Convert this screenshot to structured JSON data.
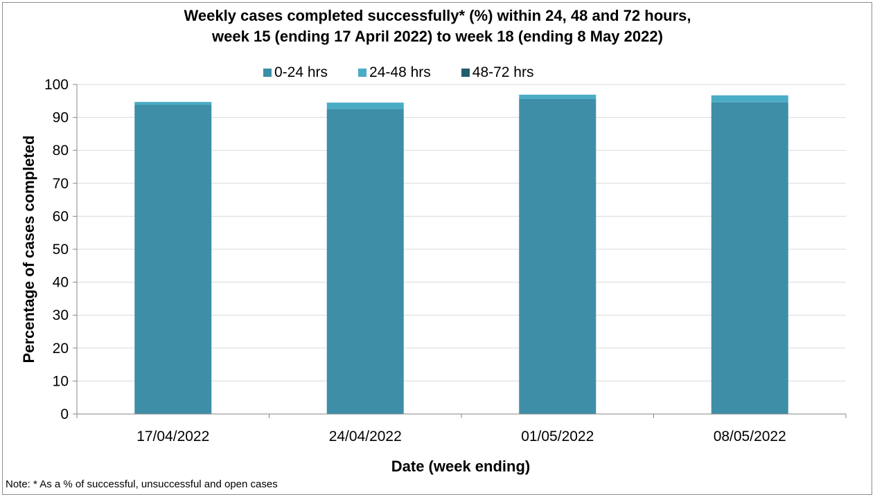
{
  "chart_data": {
    "type": "bar",
    "stacked": true,
    "title_line1": "Weekly cases completed successfully* (%) within 24, 48 and 72 hours,",
    "title_line2": "week 15 (ending 17 April 2022) to week 18 (ending 8 May 2022)",
    "xlabel": "Date (week ending)",
    "ylabel": "Percentage of cases completed",
    "ylim": [
      0,
      100
    ],
    "ytick_step": 10,
    "yticks": [
      "0",
      "10",
      "20",
      "30",
      "40",
      "50",
      "60",
      "70",
      "80",
      "90",
      "100"
    ],
    "grid": true,
    "legend_position": "top",
    "categories": [
      "17/04/2022",
      "24/04/2022",
      "01/05/2022",
      "08/05/2022"
    ],
    "series": [
      {
        "name": "0-24 hrs",
        "color": "#3d8ea6",
        "values": [
          93.8,
          92.6,
          95.6,
          94.6
        ]
      },
      {
        "name": "24-48 hrs",
        "color": "#4bacc6",
        "values": [
          0.9,
          1.9,
          1.3,
          2.1
        ]
      },
      {
        "name": "48-72 hrs",
        "color": "#215f6e",
        "values": [
          0.0,
          0.0,
          0.0,
          0.0
        ]
      }
    ],
    "note": "Note: * As a % of successful, unsuccessful and open cases"
  }
}
